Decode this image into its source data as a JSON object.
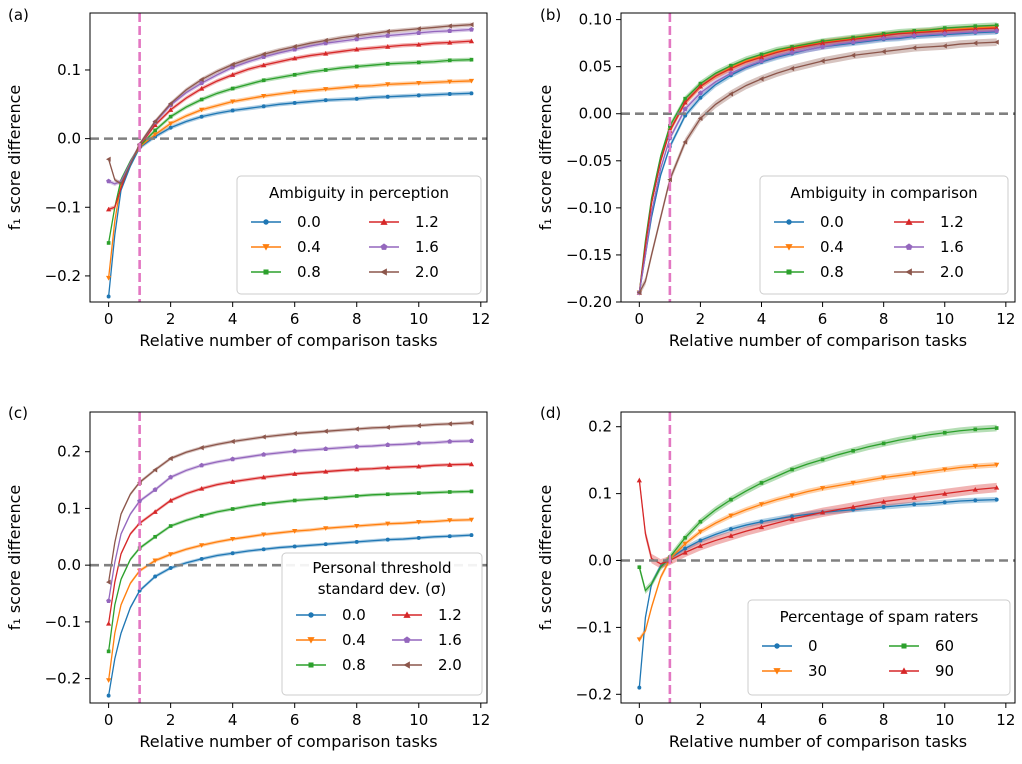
{
  "colors": {
    "c0": "#1f77b4",
    "c1": "#ff7f0e",
    "c2": "#2ca02c",
    "c3": "#d62728",
    "c4": "#9467bd",
    "c5": "#8c564b",
    "vline": "#e377c2",
    "hline": "#808080"
  },
  "chart_data": [
    {
      "panel": "(a)",
      "type": "line",
      "xlabel": "Relative number of comparison tasks",
      "ylabel": "f₁ score difference",
      "xlim": [
        -0.6,
        12.2
      ],
      "ylim": [
        -0.238,
        0.183
      ],
      "xticks": [
        0,
        2,
        4,
        6,
        8,
        10,
        12
      ],
      "xtick_labels": [
        "0",
        "2",
        "4",
        "6",
        "8",
        "10",
        "12"
      ],
      "yticks": [
        -0.2,
        -0.1,
        0.0,
        0.1
      ],
      "ytick_labels": [
        "−0.2",
        "−0.1",
        "0.0",
        "0.1"
      ],
      "vline_x": 1,
      "hline_y": 0,
      "legend": {
        "title": "Ambiguity in perception",
        "location": "lower right",
        "columns": 2
      },
      "x": [
        0,
        0.2,
        0.4,
        0.7,
        1,
        1.5,
        2,
        2.5,
        3,
        3.5,
        4,
        4.5,
        5,
        5.5,
        6,
        6.5,
        7,
        7.5,
        8,
        8.5,
        9,
        9.5,
        10,
        10.5,
        11,
        11.7
      ],
      "series": [
        {
          "name": "0.0",
          "color_key": "c0",
          "marker": "circle",
          "band": 0.003,
          "values": [
            -0.23,
            -0.14,
            -0.075,
            -0.04,
            -0.013,
            0.003,
            0.016,
            0.025,
            0.032,
            0.037,
            0.041,
            0.044,
            0.047,
            0.05,
            0.052,
            0.054,
            0.056,
            0.057,
            0.058,
            0.06,
            0.061,
            0.062,
            0.063,
            0.064,
            0.065,
            0.066
          ]
        },
        {
          "name": "0.4",
          "color_key": "c1",
          "marker": "triangle-down",
          "band": 0.003,
          "values": [
            -0.203,
            -0.12,
            -0.065,
            -0.035,
            -0.012,
            0.006,
            0.022,
            0.033,
            0.042,
            0.048,
            0.054,
            0.058,
            0.062,
            0.065,
            0.068,
            0.07,
            0.072,
            0.074,
            0.076,
            0.077,
            0.079,
            0.08,
            0.081,
            0.082,
            0.083,
            0.084
          ]
        },
        {
          "name": "0.8",
          "color_key": "c2",
          "marker": "square",
          "band": 0.003,
          "values": [
            -0.152,
            -0.1,
            -0.06,
            -0.033,
            -0.011,
            0.012,
            0.032,
            0.046,
            0.057,
            0.066,
            0.073,
            0.079,
            0.085,
            0.089,
            0.093,
            0.097,
            0.1,
            0.103,
            0.105,
            0.107,
            0.109,
            0.11,
            0.111,
            0.112,
            0.114,
            0.115
          ]
        },
        {
          "name": "1.2",
          "color_key": "c3",
          "marker": "triangle-up",
          "band": 0.003,
          "values": [
            -0.103,
            -0.1,
            -0.072,
            -0.035,
            -0.01,
            0.02,
            0.042,
            0.059,
            0.073,
            0.084,
            0.093,
            0.101,
            0.107,
            0.112,
            0.117,
            0.121,
            0.124,
            0.127,
            0.13,
            0.132,
            0.134,
            0.136,
            0.137,
            0.139,
            0.14,
            0.142
          ]
        },
        {
          "name": "1.6",
          "color_key": "c4",
          "marker": "pentagon",
          "band": 0.003,
          "values": [
            -0.062,
            -0.066,
            -0.062,
            -0.035,
            -0.009,
            0.024,
            0.049,
            0.067,
            0.081,
            0.093,
            0.104,
            0.112,
            0.119,
            0.125,
            0.13,
            0.135,
            0.139,
            0.142,
            0.145,
            0.148,
            0.15,
            0.152,
            0.154,
            0.156,
            0.157,
            0.159
          ]
        },
        {
          "name": "2.0",
          "color_key": "c5",
          "marker": "triangle-left",
          "band": 0.003,
          "values": [
            -0.03,
            -0.06,
            -0.066,
            -0.038,
            -0.008,
            0.025,
            0.051,
            0.071,
            0.086,
            0.098,
            0.108,
            0.116,
            0.123,
            0.129,
            0.134,
            0.139,
            0.143,
            0.147,
            0.15,
            0.153,
            0.156,
            0.158,
            0.16,
            0.162,
            0.164,
            0.166
          ]
        }
      ]
    },
    {
      "panel": "(b)",
      "type": "line",
      "xlabel": "Relative number of comparison tasks",
      "ylabel": "f₁ score difference",
      "xlim": [
        -0.6,
        12.3
      ],
      "ylim": [
        -0.2,
        0.107
      ],
      "xticks": [
        0,
        2,
        4,
        6,
        8,
        10,
        12
      ],
      "xtick_labels": [
        "0",
        "2",
        "4",
        "6",
        "8",
        "10",
        "12"
      ],
      "yticks": [
        -0.2,
        -0.15,
        -0.1,
        -0.05,
        0.0,
        0.05,
        0.1
      ],
      "ytick_labels": [
        "−0.20",
        "−0.15",
        "−0.10",
        "−0.05",
        "0.00",
        "0.05",
        "0.10"
      ],
      "vline_x": 1,
      "hline_y": 0,
      "legend": {
        "title": "Ambiguity in comparison",
        "location": "lower right",
        "columns": 2
      },
      "x": [
        0,
        0.2,
        0.4,
        0.7,
        1,
        1.5,
        2,
        2.5,
        3,
        3.5,
        4,
        4.5,
        5,
        5.5,
        6,
        6.5,
        7,
        7.5,
        8,
        8.5,
        9,
        9.5,
        10,
        10.5,
        11,
        11.7
      ],
      "series": [
        {
          "name": "0.0",
          "color_key": "c0",
          "marker": "circle",
          "band": 0.003,
          "values": [
            -0.19,
            -0.15,
            -0.11,
            -0.065,
            -0.035,
            -0.002,
            0.017,
            0.031,
            0.041,
            0.049,
            0.055,
            0.06,
            0.064,
            0.068,
            0.071,
            0.073,
            0.075,
            0.077,
            0.079,
            0.08,
            0.082,
            0.083,
            0.084,
            0.085,
            0.086,
            0.087
          ]
        },
        {
          "name": "0.4",
          "color_key": "c1",
          "marker": "triangle-down",
          "band": 0.003,
          "values": [
            -0.19,
            -0.14,
            -0.095,
            -0.05,
            -0.018,
            0.012,
            0.029,
            0.04,
            0.049,
            0.056,
            0.061,
            0.066,
            0.07,
            0.073,
            0.076,
            0.078,
            0.08,
            0.082,
            0.084,
            0.085,
            0.087,
            0.088,
            0.089,
            0.09,
            0.091,
            0.092
          ]
        },
        {
          "name": "0.8",
          "color_key": "c2",
          "marker": "square",
          "band": 0.003,
          "values": [
            -0.19,
            -0.135,
            -0.09,
            -0.045,
            -0.013,
            0.016,
            0.032,
            0.043,
            0.051,
            0.058,
            0.063,
            0.068,
            0.071,
            0.074,
            0.077,
            0.079,
            0.081,
            0.083,
            0.085,
            0.087,
            0.088,
            0.089,
            0.091,
            0.092,
            0.093,
            0.094
          ]
        },
        {
          "name": "1.2",
          "color_key": "c3",
          "marker": "triangle-up",
          "band": 0.003,
          "values": [
            -0.19,
            -0.14,
            -0.095,
            -0.05,
            -0.018,
            0.012,
            0.029,
            0.04,
            0.048,
            0.055,
            0.06,
            0.065,
            0.069,
            0.072,
            0.075,
            0.077,
            0.079,
            0.081,
            0.083,
            0.085,
            0.086,
            0.087,
            0.088,
            0.089,
            0.09,
            0.091
          ]
        },
        {
          "name": "1.6",
          "color_key": "c4",
          "marker": "pentagon",
          "band": 0.003,
          "values": [
            -0.19,
            -0.15,
            -0.105,
            -0.058,
            -0.026,
            0.005,
            0.022,
            0.034,
            0.043,
            0.05,
            0.056,
            0.061,
            0.065,
            0.068,
            0.071,
            0.074,
            0.076,
            0.078,
            0.08,
            0.081,
            0.083,
            0.084,
            0.085,
            0.086,
            0.087,
            0.088
          ]
        },
        {
          "name": "2.0",
          "color_key": "c5",
          "marker": "triangle-left",
          "band": 0.004,
          "values": [
            -0.19,
            -0.178,
            -0.15,
            -0.11,
            -0.07,
            -0.03,
            -0.005,
            0.01,
            0.021,
            0.03,
            0.037,
            0.043,
            0.048,
            0.052,
            0.056,
            0.059,
            0.062,
            0.064,
            0.066,
            0.068,
            0.07,
            0.071,
            0.072,
            0.074,
            0.075,
            0.076
          ]
        }
      ]
    },
    {
      "panel": "(c)",
      "type": "line",
      "xlabel": "Relative number of comparison tasks",
      "ylabel": "f₁ score difference",
      "xlim": [
        -0.6,
        12.2
      ],
      "ylim": [
        -0.243,
        0.27
      ],
      "xticks": [
        0,
        2,
        4,
        6,
        8,
        10,
        12
      ],
      "xtick_labels": [
        "0",
        "2",
        "4",
        "6",
        "8",
        "10",
        "12"
      ],
      "yticks": [
        -0.2,
        -0.1,
        0.0,
        0.1,
        0.2
      ],
      "ytick_labels": [
        "−0.2",
        "−0.1",
        "0.0",
        "0.1",
        "0.2"
      ],
      "vline_x": 1,
      "hline_y": 0,
      "legend": {
        "title": "Personal threshold",
        "title_line2": "standard dev.   (σ)",
        "location": "lower right",
        "columns": 2
      },
      "x": [
        0,
        0.2,
        0.4,
        0.7,
        1,
        1.5,
        2,
        2.5,
        3,
        3.5,
        4,
        4.5,
        5,
        5.5,
        6,
        6.5,
        7,
        7.5,
        8,
        8.5,
        9,
        9.5,
        10,
        10.5,
        11,
        11.7
      ],
      "series": [
        {
          "name": "0.0",
          "color_key": "c0",
          "marker": "circle",
          "band": 0.003,
          "values": [
            -0.23,
            -0.165,
            -0.12,
            -0.075,
            -0.045,
            -0.02,
            -0.005,
            0.004,
            0.011,
            0.017,
            0.021,
            0.025,
            0.028,
            0.031,
            0.033,
            0.035,
            0.037,
            0.039,
            0.041,
            0.043,
            0.045,
            0.046,
            0.048,
            0.05,
            0.051,
            0.053
          ]
        },
        {
          "name": "0.4",
          "color_key": "c1",
          "marker": "triangle-down",
          "band": 0.003,
          "values": [
            -0.203,
            -0.12,
            -0.07,
            -0.032,
            -0.01,
            0.008,
            0.019,
            0.028,
            0.035,
            0.041,
            0.046,
            0.05,
            0.054,
            0.057,
            0.06,
            0.062,
            0.065,
            0.067,
            0.069,
            0.071,
            0.073,
            0.074,
            0.076,
            0.077,
            0.079,
            0.08
          ]
        },
        {
          "name": "0.8",
          "color_key": "c2",
          "marker": "square",
          "band": 0.003,
          "values": [
            -0.152,
            -0.07,
            -0.025,
            0.01,
            0.03,
            0.05,
            0.069,
            0.079,
            0.087,
            0.094,
            0.099,
            0.104,
            0.108,
            0.111,
            0.114,
            0.116,
            0.118,
            0.12,
            0.122,
            0.124,
            0.125,
            0.126,
            0.127,
            0.128,
            0.129,
            0.13
          ]
        },
        {
          "name": "1.2",
          "color_key": "c3",
          "marker": "triangle-up",
          "band": 0.003,
          "values": [
            -0.103,
            -0.03,
            0.02,
            0.055,
            0.074,
            0.094,
            0.114,
            0.126,
            0.135,
            0.142,
            0.147,
            0.151,
            0.155,
            0.158,
            0.161,
            0.163,
            0.165,
            0.167,
            0.169,
            0.17,
            0.172,
            0.173,
            0.174,
            0.176,
            0.177,
            0.178
          ]
        },
        {
          "name": "1.6",
          "color_key": "c4",
          "marker": "pentagon",
          "band": 0.003,
          "values": [
            -0.063,
            0.005,
            0.055,
            0.09,
            0.113,
            0.133,
            0.155,
            0.167,
            0.176,
            0.182,
            0.187,
            0.191,
            0.195,
            0.198,
            0.201,
            0.203,
            0.205,
            0.207,
            0.209,
            0.21,
            0.212,
            0.213,
            0.215,
            0.216,
            0.218,
            0.219
          ]
        },
        {
          "name": "2.0",
          "color_key": "c5",
          "marker": "triangle-left",
          "band": 0.003,
          "values": [
            -0.03,
            0.04,
            0.09,
            0.125,
            0.146,
            0.168,
            0.188,
            0.199,
            0.207,
            0.213,
            0.218,
            0.222,
            0.226,
            0.229,
            0.232,
            0.234,
            0.236,
            0.238,
            0.24,
            0.242,
            0.243,
            0.245,
            0.246,
            0.248,
            0.249,
            0.251
          ]
        }
      ]
    },
    {
      "panel": "(d)",
      "type": "line",
      "xlabel": "Relative number of comparison tasks",
      "ylabel": "f₁ score difference",
      "xlim": [
        -0.6,
        12.3
      ],
      "ylim": [
        -0.213,
        0.222
      ],
      "xticks": [
        0,
        2,
        4,
        6,
        8,
        10,
        12
      ],
      "xtick_labels": [
        "0",
        "2",
        "4",
        "6",
        "8",
        "10",
        "12"
      ],
      "yticks": [
        -0.2,
        -0.1,
        0.0,
        0.1,
        0.2
      ],
      "ytick_labels": [
        "−0.2",
        "−0.1",
        "0.0",
        "0.1",
        "0.2"
      ],
      "vline_x": 1,
      "hline_y": 0,
      "legend": {
        "title": "Percentage of spam raters",
        "location": "lower right",
        "columns": 2
      },
      "x": [
        0,
        0.2,
        0.4,
        0.7,
        1,
        1.5,
        2,
        2.5,
        3,
        3.5,
        4,
        4.5,
        5,
        5.5,
        6,
        6.5,
        7,
        7.5,
        8,
        8.5,
        9,
        9.5,
        10,
        10.5,
        11,
        11.7
      ],
      "series": [
        {
          "name": "0",
          "color_key": "c0",
          "marker": "circle",
          "band": 0.004,
          "values": [
            -0.19,
            -0.085,
            -0.035,
            -0.008,
            0.003,
            0.018,
            0.03,
            0.039,
            0.047,
            0.053,
            0.058,
            0.062,
            0.066,
            0.069,
            0.072,
            0.074,
            0.076,
            0.078,
            0.08,
            0.082,
            0.084,
            0.085,
            0.087,
            0.089,
            0.09,
            0.091
          ]
        },
        {
          "name": "30",
          "color_key": "c1",
          "marker": "triangle-down",
          "band": 0.004,
          "values": [
            -0.118,
            -0.105,
            -0.07,
            -0.025,
            0.002,
            0.025,
            0.043,
            0.056,
            0.067,
            0.076,
            0.084,
            0.091,
            0.097,
            0.103,
            0.108,
            0.112,
            0.116,
            0.12,
            0.124,
            0.127,
            0.13,
            0.133,
            0.136,
            0.139,
            0.141,
            0.143
          ]
        },
        {
          "name": "60",
          "color_key": "c2",
          "marker": "square",
          "band": 0.005,
          "values": [
            -0.01,
            -0.045,
            -0.035,
            -0.01,
            0.005,
            0.034,
            0.058,
            0.076,
            0.091,
            0.104,
            0.116,
            0.126,
            0.136,
            0.144,
            0.151,
            0.158,
            0.164,
            0.17,
            0.175,
            0.18,
            0.184,
            0.188,
            0.191,
            0.194,
            0.196,
            0.198
          ]
        },
        {
          "name": "90",
          "color_key": "c3",
          "marker": "triangle-up",
          "band": 0.007,
          "values": [
            0.12,
            0.04,
            0.003,
            -0.005,
            0.0,
            0.012,
            0.022,
            0.03,
            0.037,
            0.044,
            0.05,
            0.056,
            0.062,
            0.067,
            0.072,
            0.076,
            0.08,
            0.084,
            0.088,
            0.091,
            0.094,
            0.097,
            0.1,
            0.103,
            0.106,
            0.109
          ]
        }
      ]
    }
  ]
}
